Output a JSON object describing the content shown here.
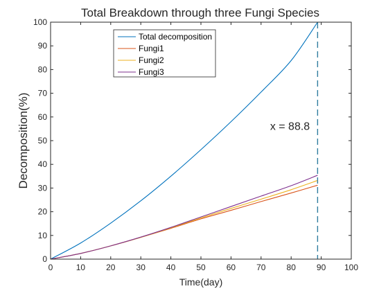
{
  "chart_data": {
    "type": "line",
    "title": "Total Breakdown through three Fungi Species",
    "xlabel": "Time(day)",
    "ylabel": "Decomposition(%)",
    "xlim": [
      0,
      100
    ],
    "ylim": [
      0,
      100
    ],
    "xticks": [
      0,
      10,
      20,
      30,
      40,
      50,
      60,
      70,
      80,
      90,
      100
    ],
    "yticks": [
      0,
      10,
      20,
      30,
      40,
      50,
      60,
      70,
      80,
      90,
      100
    ],
    "grid": false,
    "legend_position": "top-left",
    "x": [
      0,
      10,
      20,
      30,
      40,
      50,
      60,
      70,
      80,
      88.8
    ],
    "series": [
      {
        "name": "Total decomposition",
        "color": "#0072BD",
        "values": [
          0,
          6.8,
          15.2,
          24.6,
          35.0,
          46.2,
          58.0,
          70.5,
          83.8,
          100
        ]
      },
      {
        "name": "Fungi1",
        "color": "#D95319",
        "values": [
          0,
          2.4,
          5.6,
          9.2,
          13.0,
          17.0,
          20.6,
          24.3,
          27.9,
          31.2
        ]
      },
      {
        "name": "Fungi2",
        "color": "#EDB120",
        "values": [
          0,
          2.4,
          5.6,
          9.2,
          13.2,
          17.4,
          21.4,
          25.3,
          29.3,
          33.2
        ]
      },
      {
        "name": "Fungi3",
        "color": "#7E2F8E",
        "values": [
          0,
          2.4,
          5.6,
          9.3,
          13.4,
          17.8,
          22.2,
          26.6,
          31.0,
          35.4
        ]
      }
    ],
    "vline": {
      "x": 88.8,
      "color": "#2E7C9E",
      "style": "dashed"
    },
    "annotation": {
      "text": "x = 88.8",
      "x": 73,
      "y": 56
    }
  }
}
